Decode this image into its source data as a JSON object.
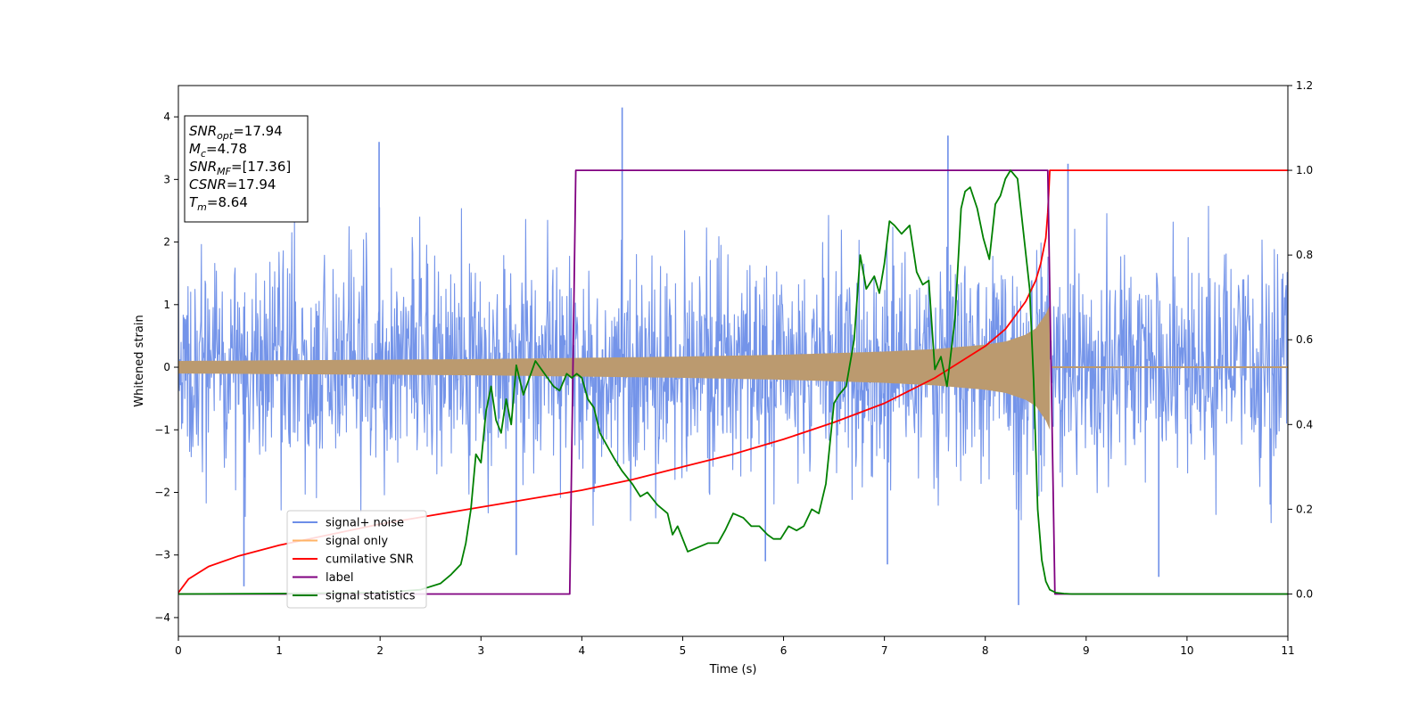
{
  "chart_data": {
    "type": "line",
    "title": "",
    "xlabel": "Time (s)",
    "ylabel": "Whitened strain",
    "y2label": "",
    "xlim": [
      0,
      11
    ],
    "ylim": [
      -4.3,
      4.5
    ],
    "y2lim": [
      -0.1,
      1.2
    ],
    "xticks": [
      0,
      1,
      2,
      3,
      4,
      5,
      6,
      7,
      8,
      9,
      10,
      11
    ],
    "yticks": [
      -4,
      -3,
      -2,
      -1,
      0,
      1,
      2,
      3,
      4
    ],
    "y2ticks": [
      0.0,
      0.2,
      0.4,
      0.6,
      0.8,
      1.0,
      1.2
    ],
    "xtick_labels": [
      "0",
      "1",
      "2",
      "3",
      "4",
      "5",
      "6",
      "7",
      "8",
      "9",
      "10",
      "11"
    ],
    "ytick_labels": [
      "−4",
      "−3",
      "−2",
      "−1",
      "0",
      "1",
      "2",
      "3",
      "4"
    ],
    "y2tick_labels": [
      "0.0",
      "0.2",
      "0.4",
      "0.6",
      "0.8",
      "1.0",
      "1.2"
    ],
    "grid": false,
    "legend_position": "lower-left",
    "legend": [
      {
        "label": "signal+ noise",
        "color": "#6d8ee8"
      },
      {
        "label": "signal only",
        "color": "#ffb366"
      },
      {
        "label": "cumilative SNR",
        "color": "#ff0000"
      },
      {
        "label": "label",
        "color": "#800080"
      },
      {
        "label": "signal statistics",
        "color": "#008000"
      }
    ],
    "annotation": {
      "lines": [
        {
          "main": "SNR",
          "sub": "opt",
          "value": "=17.94"
        },
        {
          "main": "M",
          "sub": "c",
          "value": "=4.78"
        },
        {
          "main": "SNR",
          "sub": "MF",
          "value": "=[17.36]"
        },
        {
          "main": "CSNR",
          "sub": "",
          "value": "=17.94"
        },
        {
          "main": "T",
          "sub": "m",
          "value": "=8.64"
        }
      ]
    },
    "series": [
      {
        "name": "signal+ noise",
        "axis": "left",
        "color": "#6d8ee8",
        "kind": "noise_band",
        "x_range": [
          0,
          11
        ],
        "rms": 0.85,
        "typical_max": 2.4,
        "spikes": [
          [
            0.65,
            -3.5
          ],
          [
            1.99,
            3.6
          ],
          [
            4.4,
            4.15
          ],
          [
            7.63,
            3.7
          ],
          [
            8.33,
            -3.8
          ],
          [
            8.82,
            3.25
          ],
          [
            9.72,
            -3.35
          ],
          [
            3.35,
            -3.0
          ],
          [
            5.82,
            -3.1
          ],
          [
            7.03,
            -3.15
          ]
        ]
      },
      {
        "name": "signal only",
        "axis": "left",
        "color": "#ffb366",
        "kind": "chirp_envelope",
        "x": [
          0,
          1,
          2,
          3,
          4,
          5,
          6,
          7,
          7.5,
          8,
          8.2,
          8.4,
          8.5,
          8.6,
          8.64,
          8.65,
          11
        ],
        "amplitude": [
          0.1,
          0.11,
          0.12,
          0.13,
          0.15,
          0.17,
          0.2,
          0.25,
          0.29,
          0.36,
          0.41,
          0.52,
          0.62,
          0.85,
          1.0,
          0.0,
          0.0
        ]
      },
      {
        "name": "cumilative SNR",
        "axis": "right",
        "color": "#ff0000",
        "x": [
          0,
          0.1,
          0.3,
          0.6,
          1,
          1.5,
          2,
          2.5,
          3,
          3.5,
          4,
          4.5,
          5,
          5.5,
          6,
          6.5,
          7,
          7.5,
          8,
          8.2,
          8.4,
          8.5,
          8.55,
          8.6,
          8.62,
          8.64,
          9,
          10,
          11
        ],
        "y": [
          0.003,
          0.035,
          0.065,
          0.09,
          0.115,
          0.14,
          0.165,
          0.185,
          0.205,
          0.225,
          0.245,
          0.27,
          0.3,
          0.33,
          0.365,
          0.405,
          0.45,
          0.51,
          0.585,
          0.625,
          0.69,
          0.74,
          0.78,
          0.84,
          0.9,
          1.0,
          1.0,
          1.0,
          1.0
        ]
      },
      {
        "name": "label",
        "axis": "right",
        "color": "#800080",
        "x": [
          0,
          3.88,
          3.94,
          8.62,
          8.69,
          11
        ],
        "y": [
          0,
          0,
          1,
          1,
          0,
          0
        ]
      },
      {
        "name": "signal statistics",
        "axis": "right",
        "color": "#008000",
        "x": [
          0,
          1,
          2,
          2.4,
          2.6,
          2.7,
          2.8,
          2.85,
          2.9,
          2.95,
          3.0,
          3.05,
          3.1,
          3.15,
          3.2,
          3.25,
          3.3,
          3.35,
          3.42,
          3.48,
          3.54,
          3.6,
          3.66,
          3.72,
          3.78,
          3.85,
          3.9,
          3.95,
          4.0,
          4.06,
          4.12,
          4.18,
          4.25,
          4.32,
          4.4,
          4.5,
          4.58,
          4.65,
          4.75,
          4.85,
          4.9,
          4.95,
          5.05,
          5.15,
          5.25,
          5.35,
          5.42,
          5.5,
          5.6,
          5.68,
          5.76,
          5.84,
          5.9,
          5.97,
          6.05,
          6.13,
          6.2,
          6.28,
          6.35,
          6.42,
          6.5,
          6.55,
          6.62,
          6.7,
          6.76,
          6.82,
          6.9,
          6.95,
          7.0,
          7.05,
          7.1,
          7.17,
          7.25,
          7.32,
          7.38,
          7.44,
          7.5,
          7.56,
          7.62,
          7.66,
          7.7,
          7.76,
          7.8,
          7.85,
          7.92,
          7.98,
          8.04,
          8.1,
          8.15,
          8.2,
          8.25,
          8.32,
          8.38,
          8.44,
          8.48,
          8.52,
          8.56,
          8.6,
          8.64,
          8.7,
          8.78,
          8.86,
          9,
          10,
          11
        ],
        "y": [
          0,
          0.001,
          0.003,
          0.01,
          0.025,
          0.045,
          0.07,
          0.12,
          0.2,
          0.33,
          0.31,
          0.43,
          0.49,
          0.41,
          0.38,
          0.46,
          0.4,
          0.54,
          0.47,
          0.51,
          0.55,
          0.53,
          0.51,
          0.49,
          0.48,
          0.52,
          0.51,
          0.52,
          0.51,
          0.46,
          0.44,
          0.38,
          0.35,
          0.32,
          0.29,
          0.26,
          0.23,
          0.24,
          0.21,
          0.19,
          0.14,
          0.16,
          0.1,
          0.11,
          0.12,
          0.12,
          0.15,
          0.19,
          0.18,
          0.16,
          0.16,
          0.14,
          0.13,
          0.13,
          0.16,
          0.15,
          0.16,
          0.2,
          0.19,
          0.26,
          0.45,
          0.47,
          0.49,
          0.6,
          0.8,
          0.72,
          0.75,
          0.71,
          0.78,
          0.88,
          0.87,
          0.85,
          0.87,
          0.76,
          0.73,
          0.74,
          0.53,
          0.56,
          0.49,
          0.57,
          0.65,
          0.91,
          0.95,
          0.96,
          0.91,
          0.84,
          0.79,
          0.92,
          0.94,
          0.98,
          1.0,
          0.98,
          0.85,
          0.72,
          0.5,
          0.2,
          0.08,
          0.03,
          0.01,
          0.003,
          0.001,
          0,
          0,
          0,
          0
        ]
      }
    ]
  }
}
